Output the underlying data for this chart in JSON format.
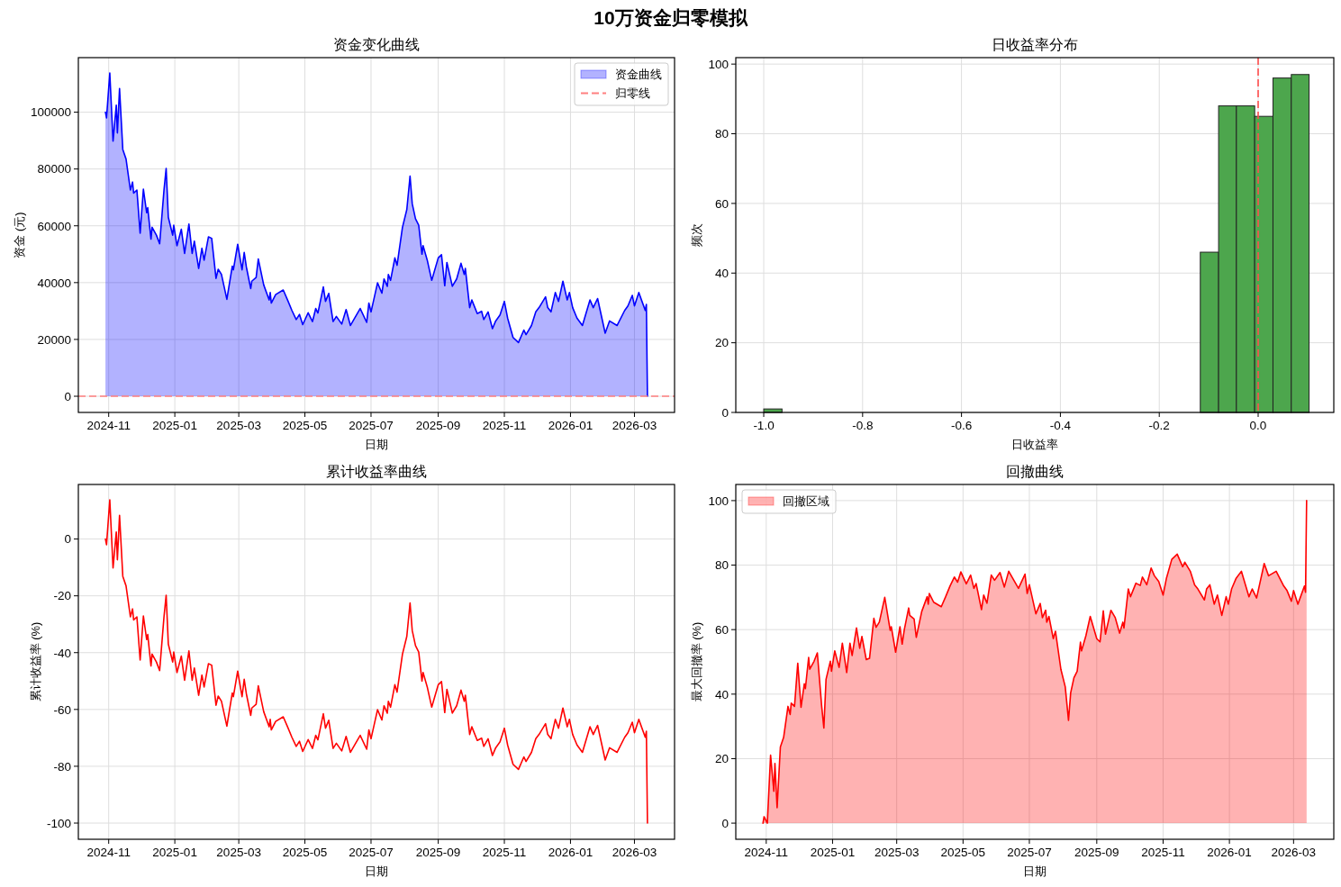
{
  "chart_data": [
    {
      "type": "other",
      "title": "10万资金归零模拟"
    },
    {
      "type": "area",
      "title": "资金变化曲线",
      "xlabel": "日期",
      "ylabel": "资金 (元)",
      "xlim": [
        "2024-10-04",
        "2026-04-07"
      ],
      "xticks": [
        "2024-11",
        "2025-01",
        "2025-03",
        "2025-05",
        "2025-07",
        "2025-09",
        "2025-11",
        "2026-01",
        "2026-03"
      ],
      "ylim": [
        -5700,
        119200
      ],
      "yticks": [
        0,
        20000,
        40000,
        60000,
        80000,
        100000
      ],
      "grid": true,
      "legend": "top right",
      "series": [
        {
          "name": "资金曲线",
          "color": "#0000ff",
          "x": [
            "2024-10-29",
            "2024-10-30",
            "2024-11-02",
            "2024-11-05",
            "2024-11-08",
            "2024-11-09",
            "2024-11-11",
            "2024-11-14",
            "2024-11-17",
            "2024-11-21",
            "2024-11-23",
            "2024-11-24",
            "2024-11-27",
            "2024-11-30",
            "2024-12-03",
            "2024-12-06",
            "2024-12-07",
            "2024-12-10",
            "2024-12-11",
            "2024-12-15",
            "2024-12-18",
            "2024-12-22",
            "2024-12-24",
            "2024-12-26",
            "2024-12-30",
            "2024-12-31",
            "2025-01-03",
            "2025-01-07",
            "2025-01-10",
            "2025-01-14",
            "2025-01-17",
            "2025-01-19",
            "2025-01-23",
            "2025-01-26",
            "2025-01-28",
            "2025-02-01",
            "2025-02-04",
            "2025-02-08",
            "2025-02-10",
            "2025-02-13",
            "2025-02-18",
            "2025-02-23",
            "2025-02-24",
            "2025-02-28",
            "2025-03-04",
            "2025-03-06",
            "2025-03-08",
            "2025-03-12",
            "2025-03-13",
            "2025-03-17",
            "2025-03-19",
            "2025-03-24",
            "2025-03-29",
            "2025-03-30",
            "2025-03-31",
            "2025-04-04",
            "2025-04-11",
            "2025-04-15",
            "2025-04-19",
            "2025-04-23",
            "2025-04-26",
            "2025-04-29",
            "2025-05-04",
            "2025-05-08",
            "2025-05-11",
            "2025-05-13",
            "2025-05-18",
            "2025-05-20",
            "2025-05-23",
            "2025-05-27",
            "2025-05-30",
            "2025-06-04",
            "2025-06-08",
            "2025-06-12",
            "2025-06-21",
            "2025-06-27",
            "2025-06-29",
            "2025-07-01",
            "2025-07-07",
            "2025-07-11",
            "2025-07-13",
            "2025-07-16",
            "2025-07-17",
            "2025-07-19",
            "2025-07-23",
            "2025-07-25",
            "2025-07-30",
            "2025-08-03",
            "2025-08-06",
            "2025-08-08",
            "2025-08-11",
            "2025-08-14",
            "2025-08-17",
            "2025-08-18",
            "2025-08-22",
            "2025-08-26",
            "2025-09-01",
            "2025-09-04",
            "2025-09-07",
            "2025-09-09",
            "2025-09-14",
            "2025-09-18",
            "2025-09-22",
            "2025-09-25",
            "2025-09-26",
            "2025-09-30",
            "2025-10-02",
            "2025-10-07",
            "2025-10-11",
            "2025-10-13",
            "2025-10-17",
            "2025-10-21",
            "2025-10-24",
            "2025-10-28",
            "2025-11-01",
            "2025-11-04",
            "2025-11-09",
            "2025-11-14",
            "2025-11-19",
            "2025-11-21",
            "2025-11-26",
            "2025-11-30",
            "2025-12-03",
            "2025-12-09",
            "2025-12-11",
            "2025-12-14",
            "2025-12-18",
            "2025-12-21",
            "2025-12-25",
            "2025-12-29",
            "2025-12-31",
            "2026-01-03",
            "2026-01-07",
            "2026-01-12",
            "2026-01-19",
            "2026-01-22",
            "2026-01-26",
            "2026-02-02",
            "2026-02-06",
            "2026-02-13",
            "2026-02-20",
            "2026-02-23",
            "2026-02-27",
            "2026-03-01",
            "2026-03-05",
            "2026-03-11",
            "2026-03-12",
            "2026-03-13"
          ],
          "values": [
            100000,
            98000,
            113800,
            89800,
            102500,
            92700,
            108300,
            86900,
            83500,
            72600,
            75400,
            71500,
            72600,
            57400,
            72900,
            64600,
            66400,
            55300,
            59500,
            56700,
            53700,
            72600,
            80200,
            63000,
            56700,
            60200,
            53000,
            58800,
            50300,
            60600,
            50300,
            54600,
            45000,
            52100,
            47900,
            56100,
            55600,
            41500,
            44700,
            42900,
            34100,
            45800,
            44500,
            53500,
            44500,
            50600,
            45500,
            37900,
            40500,
            41800,
            48300,
            39200,
            33900,
            36500,
            32800,
            35800,
            37400,
            33900,
            30200,
            27000,
            28800,
            25200,
            29400,
            26300,
            30900,
            29300,
            38500,
            33400,
            36200,
            26300,
            28100,
            25400,
            30500,
            24900,
            30900,
            26000,
            32800,
            29700,
            39900,
            36300,
            41300,
            38700,
            42900,
            40800,
            48700,
            46100,
            59500,
            65700,
            77500,
            67800,
            62500,
            60200,
            50000,
            53000,
            47700,
            40800,
            48700,
            49800,
            38900,
            47100,
            38700,
            41300,
            46800,
            42900,
            45000,
            31200,
            33900,
            29100,
            29900,
            27000,
            29700,
            23800,
            26500,
            28600,
            33400,
            27500,
            20700,
            18900,
            23300,
            21700,
            24900,
            29700,
            31200,
            35000,
            31200,
            29700,
            36500,
            33400,
            40500,
            33900,
            36500,
            31200,
            27500,
            24900,
            33900,
            31200,
            34400,
            22200,
            26500,
            24900,
            30200,
            31800,
            35500,
            31800,
            36500,
            30200,
            32300,
            0
          ]
        }
      ],
      "ref_lines": [
        {
          "axis": "y",
          "value": 0,
          "label": "归零线",
          "color": "#ff8080",
          "line_style": "dashed"
        }
      ]
    },
    {
      "type": "histogram",
      "title": "日收益率分布",
      "xlabel": "日收益率",
      "ylabel": "频次",
      "xlim": [
        -1.0565,
        0.153
      ],
      "xticks": [
        {
          "value": -1,
          "label": "-1.0"
        },
        -0.8,
        -0.6,
        -0.4,
        -0.2,
        {
          "value": 0,
          "label": "0.0"
        }
      ],
      "ylim": [
        0,
        101.85
      ],
      "yticks": [
        0,
        20,
        40,
        60,
        80,
        100
      ],
      "grid": true,
      "color": "#4da64d",
      "bins": [
        -1.0,
        -0.963,
        -0.117,
        -0.08,
        -0.044,
        -0.007,
        0.03,
        0.067,
        0.103
      ],
      "values": [
        1,
        0,
        46,
        88,
        88,
        85,
        96,
        97
      ],
      "ref_lines": [
        {
          "axis": "x",
          "value": 0,
          "color": "#ff4d4d",
          "line_style": "dashed"
        }
      ]
    },
    {
      "type": "line",
      "title": "累计收益率曲线",
      "xlabel": "日期",
      "ylabel": "累计收益率 (%)",
      "xlim": [
        "2024-10-04",
        "2026-04-07"
      ],
      "xticks": [
        "2024-11",
        "2025-01",
        "2025-03",
        "2025-05",
        "2025-07",
        "2025-09",
        "2025-11",
        "2026-01",
        "2026-03"
      ],
      "ylim": [
        -105.7,
        19.2
      ],
      "yticks": [
        -100,
        -80,
        -60,
        -40,
        -20,
        0
      ],
      "grid": true,
      "series": [
        {
          "color": "#ff0000",
          "x": [
            "2024-10-29",
            "2024-10-30",
            "2024-11-02",
            "2024-11-05",
            "2024-11-08",
            "2024-11-09",
            "2024-11-11",
            "2024-11-14",
            "2024-11-17",
            "2024-11-21",
            "2024-11-23",
            "2024-11-24",
            "2024-11-27",
            "2024-11-30",
            "2024-12-03",
            "2024-12-06",
            "2024-12-07",
            "2024-12-10",
            "2024-12-11",
            "2024-12-15",
            "2024-12-18",
            "2024-12-22",
            "2024-12-24",
            "2024-12-26",
            "2024-12-30",
            "2024-12-31",
            "2025-01-03",
            "2025-01-07",
            "2025-01-10",
            "2025-01-14",
            "2025-01-17",
            "2025-01-19",
            "2025-01-23",
            "2025-01-26",
            "2025-01-28",
            "2025-02-01",
            "2025-02-04",
            "2025-02-08",
            "2025-02-10",
            "2025-02-13",
            "2025-02-18",
            "2025-02-23",
            "2025-02-24",
            "2025-02-28",
            "2025-03-04",
            "2025-03-06",
            "2025-03-08",
            "2025-03-12",
            "2025-03-13",
            "2025-03-17",
            "2025-03-19",
            "2025-03-24",
            "2025-03-29",
            "2025-03-30",
            "2025-03-31",
            "2025-04-04",
            "2025-04-11",
            "2025-04-15",
            "2025-04-19",
            "2025-04-23",
            "2025-04-26",
            "2025-04-29",
            "2025-05-04",
            "2025-05-08",
            "2025-05-11",
            "2025-05-13",
            "2025-05-18",
            "2025-05-20",
            "2025-05-23",
            "2025-05-27",
            "2025-05-30",
            "2025-06-04",
            "2025-06-08",
            "2025-06-12",
            "2025-06-21",
            "2025-06-27",
            "2025-06-29",
            "2025-07-01",
            "2025-07-07",
            "2025-07-11",
            "2025-07-13",
            "2025-07-16",
            "2025-07-17",
            "2025-07-19",
            "2025-07-23",
            "2025-07-25",
            "2025-07-30",
            "2025-08-03",
            "2025-08-06",
            "2025-08-08",
            "2025-08-11",
            "2025-08-14",
            "2025-08-17",
            "2025-08-18",
            "2025-08-22",
            "2025-08-26",
            "2025-09-01",
            "2025-09-04",
            "2025-09-07",
            "2025-09-09",
            "2025-09-14",
            "2025-09-18",
            "2025-09-22",
            "2025-09-25",
            "2025-09-26",
            "2025-09-30",
            "2025-10-02",
            "2025-10-07",
            "2025-10-11",
            "2025-10-13",
            "2025-10-17",
            "2025-10-21",
            "2025-10-24",
            "2025-10-28",
            "2025-11-01",
            "2025-11-04",
            "2025-11-09",
            "2025-11-14",
            "2025-11-19",
            "2025-11-21",
            "2025-11-26",
            "2025-11-30",
            "2025-12-03",
            "2025-12-09",
            "2025-12-11",
            "2025-12-14",
            "2025-12-18",
            "2025-12-21",
            "2025-12-25",
            "2025-12-29",
            "2025-12-31",
            "2026-01-03",
            "2026-01-07",
            "2026-01-12",
            "2026-01-19",
            "2026-01-22",
            "2026-01-26",
            "2026-02-02",
            "2026-02-06",
            "2026-02-13",
            "2026-02-20",
            "2026-02-23",
            "2026-02-27",
            "2026-03-01",
            "2026-03-05",
            "2026-03-11",
            "2026-03-12",
            "2026-03-13"
          ],
          "values": [
            0,
            -2.0,
            13.8,
            -10.2,
            2.5,
            -7.3,
            8.3,
            -13.1,
            -16.5,
            -27.4,
            -24.6,
            -28.5,
            -27.4,
            -42.6,
            -27.1,
            -35.4,
            -33.6,
            -44.7,
            -40.5,
            -43.3,
            -46.3,
            -27.4,
            -19.8,
            -37.0,
            -43.3,
            -39.8,
            -47.0,
            -41.2,
            -49.7,
            -39.4,
            -49.7,
            -45.4,
            -55.0,
            -47.9,
            -52.1,
            -43.9,
            -44.4,
            -58.5,
            -55.3,
            -57.1,
            -65.9,
            -54.2,
            -55.5,
            -46.5,
            -55.5,
            -49.4,
            -54.5,
            -62.1,
            -59.5,
            -58.2,
            -51.7,
            -60.8,
            -66.1,
            -63.5,
            -67.2,
            -64.2,
            -62.6,
            -66.1,
            -69.8,
            -73.0,
            -71.2,
            -74.8,
            -70.6,
            -73.7,
            -69.1,
            -70.7,
            -61.5,
            -66.6,
            -63.8,
            -73.7,
            -71.9,
            -74.6,
            -69.5,
            -75.1,
            -69.1,
            -74.0,
            -67.2,
            -70.3,
            -60.1,
            -63.7,
            -58.7,
            -61.3,
            -57.1,
            -59.2,
            -51.3,
            -53.9,
            -40.5,
            -34.3,
            -22.5,
            -32.2,
            -37.5,
            -39.8,
            -50.0,
            -47.0,
            -52.3,
            -59.2,
            -51.3,
            -50.2,
            -61.1,
            -52.9,
            -61.3,
            -58.7,
            -53.2,
            -57.1,
            -55.0,
            -68.8,
            -66.1,
            -70.9,
            -70.1,
            -73.0,
            -70.3,
            -76.2,
            -73.5,
            -71.4,
            -66.6,
            -72.5,
            -79.3,
            -81.1,
            -76.7,
            -78.3,
            -75.1,
            -70.3,
            -68.8,
            -65.0,
            -68.8,
            -70.3,
            -63.5,
            -66.6,
            -59.5,
            -66.1,
            -63.5,
            -68.8,
            -72.5,
            -75.1,
            -66.1,
            -68.8,
            -65.6,
            -77.8,
            -73.5,
            -75.1,
            -69.8,
            -68.2,
            -64.5,
            -68.2,
            -63.5,
            -69.8,
            -67.7,
            -100
          ]
        }
      ]
    },
    {
      "type": "area",
      "title": "回撤曲线",
      "xlabel": "日期",
      "ylabel": "最大回撤率 (%)",
      "xlim": [
        "2024-10-04",
        "2026-04-07"
      ],
      "xticks": [
        "2024-11",
        "2025-01",
        "2025-03",
        "2025-05",
        "2025-07",
        "2025-09",
        "2025-11",
        "2026-01",
        "2026-03"
      ],
      "ylim": [
        -5,
        105
      ],
      "yticks": [
        0,
        20,
        40,
        60,
        80,
        100
      ],
      "grid": true,
      "legend": "top left",
      "series": [
        {
          "name": "回撤区域",
          "color": "#ff0000",
          "x": [
            "2024-10-29",
            "2024-10-30",
            "2024-11-02",
            "2024-11-05",
            "2024-11-08",
            "2024-11-09",
            "2024-11-11",
            "2024-11-14",
            "2024-11-17",
            "2024-11-21",
            "2024-11-23",
            "2024-11-24",
            "2024-11-27",
            "2024-11-30",
            "2024-12-03",
            "2024-12-06",
            "2024-12-07",
            "2024-12-10",
            "2024-12-11",
            "2024-12-15",
            "2024-12-18",
            "2024-12-22",
            "2024-12-24",
            "2024-12-26",
            "2024-12-30",
            "2024-12-31",
            "2025-01-03",
            "2025-01-07",
            "2025-01-10",
            "2025-01-14",
            "2025-01-17",
            "2025-01-19",
            "2025-01-23",
            "2025-01-26",
            "2025-01-28",
            "2025-02-01",
            "2025-02-04",
            "2025-02-08",
            "2025-02-10",
            "2025-02-13",
            "2025-02-18",
            "2025-02-23",
            "2025-02-24",
            "2025-02-28",
            "2025-03-04",
            "2025-03-06",
            "2025-03-08",
            "2025-03-12",
            "2025-03-13",
            "2025-03-17",
            "2025-03-19",
            "2025-03-24",
            "2025-03-29",
            "2025-03-30",
            "2025-03-31",
            "2025-04-04",
            "2025-04-11",
            "2025-04-15",
            "2025-04-19",
            "2025-04-23",
            "2025-04-26",
            "2025-04-29",
            "2025-05-04",
            "2025-05-08",
            "2025-05-11",
            "2025-05-13",
            "2025-05-18",
            "2025-05-20",
            "2025-05-23",
            "2025-05-27",
            "2025-05-30",
            "2025-06-04",
            "2025-06-08",
            "2025-06-12",
            "2025-06-21",
            "2025-06-27",
            "2025-06-29",
            "2025-07-01",
            "2025-07-07",
            "2025-07-11",
            "2025-07-13",
            "2025-07-16",
            "2025-07-17",
            "2025-07-19",
            "2025-07-23",
            "2025-07-25",
            "2025-07-30",
            "2025-08-03",
            "2025-08-06",
            "2025-08-08",
            "2025-08-11",
            "2025-08-14",
            "2025-08-17",
            "2025-08-18",
            "2025-08-22",
            "2025-08-26",
            "2025-09-01",
            "2025-09-04",
            "2025-09-07",
            "2025-09-09",
            "2025-09-14",
            "2025-09-18",
            "2025-09-22",
            "2025-09-25",
            "2025-09-26",
            "2025-09-30",
            "2025-10-02",
            "2025-10-07",
            "2025-10-11",
            "2025-10-13",
            "2025-10-17",
            "2025-10-21",
            "2025-10-24",
            "2025-10-28",
            "2025-11-01",
            "2025-11-04",
            "2025-11-09",
            "2025-11-14",
            "2025-11-19",
            "2025-11-21",
            "2025-11-26",
            "2025-11-30",
            "2025-12-03",
            "2025-12-09",
            "2025-12-11",
            "2025-12-14",
            "2025-12-18",
            "2025-12-21",
            "2025-12-25",
            "2025-12-29",
            "2025-12-31",
            "2026-01-03",
            "2026-01-07",
            "2026-01-12",
            "2026-01-19",
            "2026-01-22",
            "2026-01-26",
            "2026-02-02",
            "2026-02-06",
            "2026-02-13",
            "2026-02-20",
            "2026-02-23",
            "2026-02-27",
            "2026-03-01",
            "2026-03-05",
            "2026-03-11",
            "2026-03-12",
            "2026-03-13"
          ],
          "values": [
            0,
            2.0,
            0,
            21.1,
            9.9,
            18.5,
            4.8,
            23.6,
            26.6,
            36.2,
            33.7,
            37.2,
            36.2,
            49.6,
            35.9,
            43.2,
            41.7,
            51.4,
            47.7,
            50.2,
            52.8,
            36.2,
            29.5,
            44.6,
            50.2,
            47.1,
            53.4,
            48.3,
            55.8,
            46.7,
            55.8,
            52.0,
            60.5,
            54.2,
            57.9,
            50.7,
            51.1,
            63.5,
            60.7,
            62.3,
            70.0,
            59.8,
            60.9,
            53.0,
            60.9,
            55.5,
            60.0,
            66.7,
            64.4,
            63.3,
            57.6,
            65.6,
            70.2,
            67.9,
            71.2,
            68.5,
            67.1,
            70.2,
            73.5,
            76.3,
            74.7,
            77.9,
            74.2,
            76.9,
            72.8,
            74.3,
            66.2,
            70.7,
            68.2,
            76.9,
            75.3,
            77.7,
            73.2,
            78.1,
            72.8,
            77.2,
            71.2,
            73.9,
            64.9,
            68.1,
            63.7,
            66.0,
            62.3,
            64.1,
            57.2,
            59.5,
            47.7,
            42.3,
            31.9,
            40.4,
            45.1,
            47.1,
            56.1,
            53.4,
            58.1,
            64.1,
            57.2,
            56.2,
            65.8,
            58.6,
            66.0,
            63.7,
            58.9,
            62.3,
            60.5,
            72.6,
            70.2,
            74.4,
            73.7,
            76.3,
            73.9,
            79.1,
            76.7,
            74.9,
            70.7,
            75.8,
            81.8,
            83.4,
            79.5,
            80.9,
            78.1,
            73.9,
            72.6,
            69.2,
            72.6,
            73.9,
            67.9,
            70.7,
            64.4,
            70.2,
            67.9,
            72.6,
            75.8,
            78.1,
            70.2,
            72.6,
            69.8,
            80.5,
            76.7,
            78.1,
            73.5,
            72.1,
            68.8,
            72.1,
            67.9,
            73.5,
            71.6,
            100
          ]
        }
      ]
    }
  ]
}
